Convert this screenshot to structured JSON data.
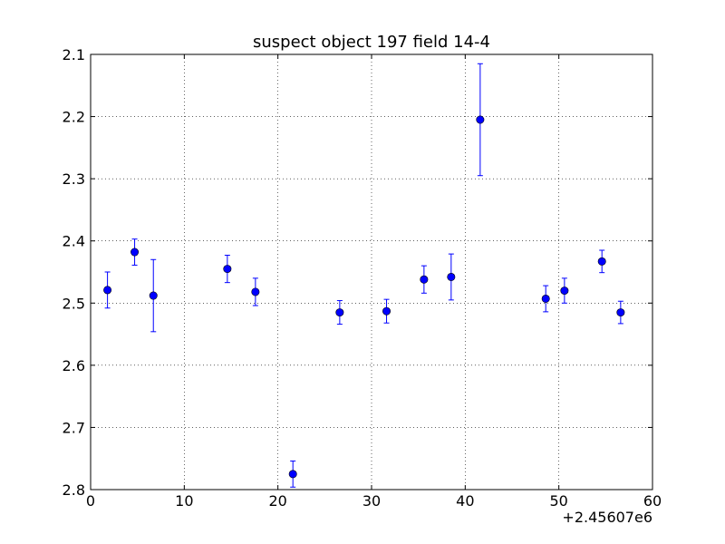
{
  "chart_data": {
    "type": "scatter",
    "title": "suspect object 197 field 14-4",
    "xlabel": "",
    "ylabel": "",
    "x_offset_label": "+2.45607e6",
    "xlim": [
      0,
      60
    ],
    "ylim": [
      2.1,
      2.8
    ],
    "y_inverted": true,
    "grid": true,
    "x_ticks": [
      "0",
      "10",
      "20",
      "30",
      "40",
      "50",
      "60"
    ],
    "y_ticks": [
      "2.1",
      "2.2",
      "2.3",
      "2.4",
      "2.5",
      "2.6",
      "2.7",
      "2.8"
    ],
    "color": "#0000ff",
    "points": [
      {
        "x": 1.8,
        "y": 2.479,
        "err": 0.029
      },
      {
        "x": 4.7,
        "y": 2.418,
        "err": 0.021
      },
      {
        "x": 6.7,
        "y": 2.488,
        "err": 0.058
      },
      {
        "x": 14.6,
        "y": 2.445,
        "err": 0.022
      },
      {
        "x": 17.6,
        "y": 2.482,
        "err": 0.022
      },
      {
        "x": 21.6,
        "y": 2.775,
        "err": 0.021
      },
      {
        "x": 26.6,
        "y": 2.515,
        "err": 0.019
      },
      {
        "x": 31.6,
        "y": 2.513,
        "err": 0.019
      },
      {
        "x": 35.6,
        "y": 2.462,
        "err": 0.022
      },
      {
        "x": 38.5,
        "y": 2.458,
        "err": 0.037
      },
      {
        "x": 41.6,
        "y": 2.205,
        "err": 0.09
      },
      {
        "x": 48.6,
        "y": 2.493,
        "err": 0.021
      },
      {
        "x": 50.6,
        "y": 2.48,
        "err": 0.02
      },
      {
        "x": 54.6,
        "y": 2.433,
        "err": 0.018
      },
      {
        "x": 56.6,
        "y": 2.515,
        "err": 0.018
      }
    ]
  }
}
